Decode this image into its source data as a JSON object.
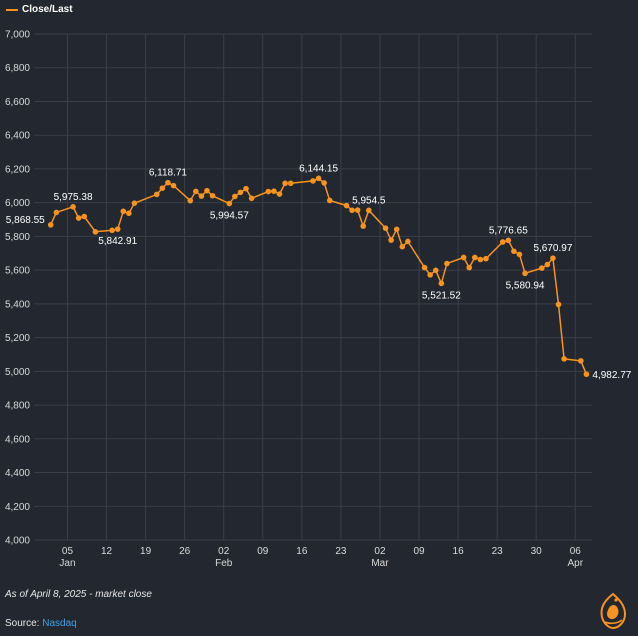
{
  "legend": {
    "label": "Close/Last",
    "color": "#f7931e"
  },
  "footnote": "As of April 8, 2025 - market close",
  "source": {
    "prefix": "Source: ",
    "name": "Nasdaq"
  },
  "logo_icon": "al-jazeera-logo-icon",
  "colors": {
    "background": "#23272f",
    "line": "#f7931e",
    "grid": "#3a3f48",
    "text": "#ffffff"
  },
  "chart_data": {
    "type": "line",
    "title": "",
    "xlabel": "",
    "ylabel": "",
    "ylim": [
      4000,
      7000
    ],
    "yticks": [
      4000,
      4200,
      4400,
      4600,
      4800,
      5000,
      5200,
      5400,
      5600,
      5800,
      6000,
      6200,
      6400,
      6600,
      6800,
      7000
    ],
    "ytick_labels": [
      "4,000",
      "4,200",
      "4,400",
      "4,600",
      "4,800",
      "5,000",
      "5,200",
      "5,400",
      "5,600",
      "5,800",
      "6,000",
      "6,200",
      "6,400",
      "6,600",
      "6,800",
      "7,000"
    ],
    "xlim": [
      "2024-12-30",
      "2025-04-09"
    ],
    "xticks": [
      {
        "date": "2025-01-05",
        "label": "05",
        "month": "Jan"
      },
      {
        "date": "2025-01-12",
        "label": "12",
        "month": ""
      },
      {
        "date": "2025-01-19",
        "label": "19",
        "month": ""
      },
      {
        "date": "2025-01-26",
        "label": "26",
        "month": ""
      },
      {
        "date": "2025-02-02",
        "label": "02",
        "month": "Feb"
      },
      {
        "date": "2025-02-09",
        "label": "09",
        "month": ""
      },
      {
        "date": "2025-02-16",
        "label": "16",
        "month": ""
      },
      {
        "date": "2025-02-23",
        "label": "23",
        "month": ""
      },
      {
        "date": "2025-03-02",
        "label": "02",
        "month": "Mar"
      },
      {
        "date": "2025-03-09",
        "label": "09",
        "month": ""
      },
      {
        "date": "2025-03-16",
        "label": "16",
        "month": ""
      },
      {
        "date": "2025-03-23",
        "label": "23",
        "month": ""
      },
      {
        "date": "2025-03-30",
        "label": "30",
        "month": ""
      },
      {
        "date": "2025-04-06",
        "label": "06",
        "month": "Apr"
      }
    ],
    "grid": true,
    "legend_position": "top-left",
    "series": [
      {
        "name": "Close/Last",
        "color": "#f7931e",
        "points": [
          {
            "x": "2025-01-02",
            "y": 5868.55
          },
          {
            "x": "2025-01-03",
            "y": 5942
          },
          {
            "x": "2025-01-06",
            "y": 5975.38
          },
          {
            "x": "2025-01-07",
            "y": 5909
          },
          {
            "x": "2025-01-08",
            "y": 5918
          },
          {
            "x": "2025-01-10",
            "y": 5827
          },
          {
            "x": "2025-01-13",
            "y": 5836
          },
          {
            "x": "2025-01-14",
            "y": 5842.91
          },
          {
            "x": "2025-01-15",
            "y": 5949
          },
          {
            "x": "2025-01-16",
            "y": 5937
          },
          {
            "x": "2025-01-17",
            "y": 5997
          },
          {
            "x": "2025-01-21",
            "y": 6049
          },
          {
            "x": "2025-01-22",
            "y": 6086
          },
          {
            "x": "2025-01-23",
            "y": 6118.71
          },
          {
            "x": "2025-01-24",
            "y": 6101
          },
          {
            "x": "2025-01-27",
            "y": 6012
          },
          {
            "x": "2025-01-28",
            "y": 6067
          },
          {
            "x": "2025-01-29",
            "y": 6039
          },
          {
            "x": "2025-01-30",
            "y": 6071
          },
          {
            "x": "2025-01-31",
            "y": 6041
          },
          {
            "x": "2025-02-03",
            "y": 5994.57
          },
          {
            "x": "2025-02-04",
            "y": 6037
          },
          {
            "x": "2025-02-05",
            "y": 6061
          },
          {
            "x": "2025-02-06",
            "y": 6083
          },
          {
            "x": "2025-02-07",
            "y": 6026
          },
          {
            "x": "2025-02-10",
            "y": 6066
          },
          {
            "x": "2025-02-11",
            "y": 6068
          },
          {
            "x": "2025-02-12",
            "y": 6051
          },
          {
            "x": "2025-02-13",
            "y": 6115
          },
          {
            "x": "2025-02-14",
            "y": 6115
          },
          {
            "x": "2025-02-18",
            "y": 6129
          },
          {
            "x": "2025-02-19",
            "y": 6144.15
          },
          {
            "x": "2025-02-20",
            "y": 6117
          },
          {
            "x": "2025-02-21",
            "y": 6013
          },
          {
            "x": "2025-02-24",
            "y": 5983
          },
          {
            "x": "2025-02-25",
            "y": 5955
          },
          {
            "x": "2025-02-26",
            "y": 5956
          },
          {
            "x": "2025-02-27",
            "y": 5861
          },
          {
            "x": "2025-02-28",
            "y": 5954.5
          },
          {
            "x": "2025-03-03",
            "y": 5849
          },
          {
            "x": "2025-03-04",
            "y": 5778
          },
          {
            "x": "2025-03-05",
            "y": 5842
          },
          {
            "x": "2025-03-06",
            "y": 5739
          },
          {
            "x": "2025-03-07",
            "y": 5770
          },
          {
            "x": "2025-03-10",
            "y": 5615
          },
          {
            "x": "2025-03-11",
            "y": 5572
          },
          {
            "x": "2025-03-12",
            "y": 5599
          },
          {
            "x": "2025-03-13",
            "y": 5521.52
          },
          {
            "x": "2025-03-14",
            "y": 5639
          },
          {
            "x": "2025-03-17",
            "y": 5675
          },
          {
            "x": "2025-03-18",
            "y": 5615
          },
          {
            "x": "2025-03-19",
            "y": 5675
          },
          {
            "x": "2025-03-20",
            "y": 5663
          },
          {
            "x": "2025-03-21",
            "y": 5668
          },
          {
            "x": "2025-03-24",
            "y": 5767
          },
          {
            "x": "2025-03-25",
            "y": 5776.65
          },
          {
            "x": "2025-03-26",
            "y": 5712
          },
          {
            "x": "2025-03-27",
            "y": 5693
          },
          {
            "x": "2025-03-28",
            "y": 5580.94
          },
          {
            "x": "2025-03-31",
            "y": 5612
          },
          {
            "x": "2025-04-01",
            "y": 5633
          },
          {
            "x": "2025-04-02",
            "y": 5670.97
          },
          {
            "x": "2025-04-03",
            "y": 5396
          },
          {
            "x": "2025-04-04",
            "y": 5074
          },
          {
            "x": "2025-04-07",
            "y": 5062
          },
          {
            "x": "2025-04-08",
            "y": 4982.77
          }
        ]
      }
    ],
    "annotations": [
      {
        "x": "2025-01-02",
        "y": 5868.55,
        "text": "5,868.55",
        "position": "left"
      },
      {
        "x": "2025-01-06",
        "y": 5975.38,
        "text": "5,975.38",
        "position": "above"
      },
      {
        "x": "2025-01-14",
        "y": 5842.91,
        "text": "5,842.91",
        "position": "below"
      },
      {
        "x": "2025-01-23",
        "y": 6118.71,
        "text": "6,118.71",
        "position": "above"
      },
      {
        "x": "2025-02-03",
        "y": 5994.57,
        "text": "5,994.57",
        "position": "below"
      },
      {
        "x": "2025-02-19",
        "y": 6144.15,
        "text": "6,144.15",
        "position": "above"
      },
      {
        "x": "2025-02-28",
        "y": 5954.5,
        "text": "5,954.5",
        "position": "above"
      },
      {
        "x": "2025-03-13",
        "y": 5521.52,
        "text": "5,521.52",
        "position": "below"
      },
      {
        "x": "2025-03-25",
        "y": 5776.65,
        "text": "5,776.65",
        "position": "above"
      },
      {
        "x": "2025-03-28",
        "y": 5580.94,
        "text": "5,580.94",
        "position": "below"
      },
      {
        "x": "2025-04-02",
        "y": 5670.97,
        "text": "5,670.97",
        "position": "above"
      },
      {
        "x": "2025-04-08",
        "y": 4982.77,
        "text": "4,982.77",
        "position": "right"
      }
    ]
  }
}
